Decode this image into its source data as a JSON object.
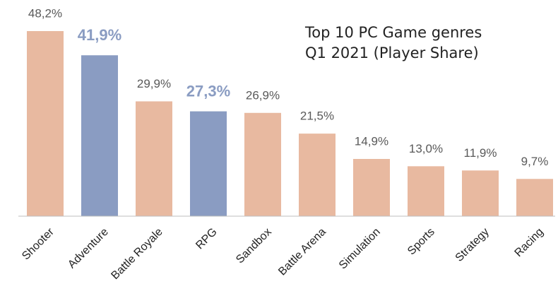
{
  "chart_data": {
    "type": "bar",
    "title": "Top 10 PC Game genres",
    "subtitle": "Q1 2021 (Player Share)",
    "categories": [
      "Shooter",
      "Adventure",
      "Battle Royale",
      "RPG",
      "Sandbox",
      "Battle Arena",
      "Simulation",
      "Sports",
      "Strategy",
      "Racing"
    ],
    "values": [
      48.2,
      41.9,
      29.9,
      27.3,
      26.9,
      21.5,
      14.9,
      13.0,
      11.9,
      9.7
    ],
    "value_labels": [
      "48,2%",
      "41,9%",
      "29,9%",
      "27,3%",
      "26,9%",
      "21,5%",
      "14,9%",
      "13,0%",
      "11,9%",
      "9,7%"
    ],
    "color": "#e8b9a0",
    "colors": [
      "#e8b9a0",
      "#8a9cc2",
      "#e8b9a0",
      "#8a9cc2",
      "#e8b9a0",
      "#e8b9a0",
      "#e8b9a0",
      "#e8b9a0",
      "#e8b9a0",
      "#e8b9a0"
    ]
  }
}
